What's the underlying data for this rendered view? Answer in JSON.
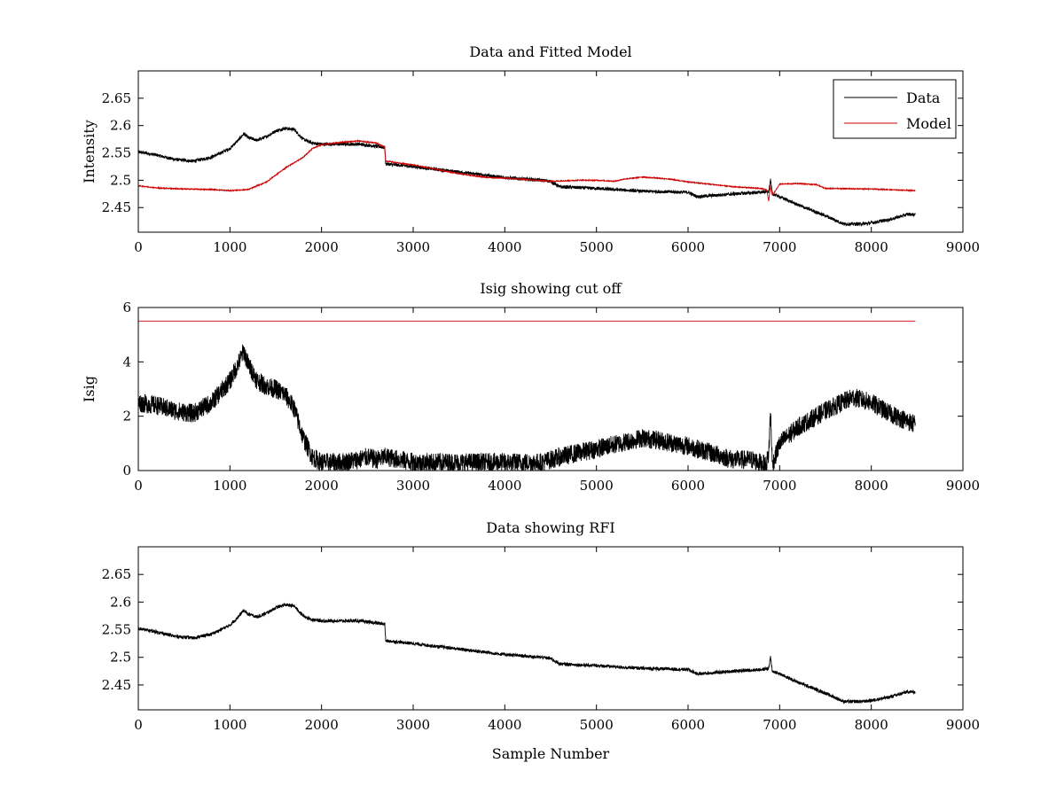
{
  "chart_data": [
    {
      "type": "line",
      "title": "Data and Fitted Model",
      "xlabel": "",
      "ylabel": "Intensity",
      "xlim": [
        0,
        9000
      ],
      "ylim": [
        2.405,
        2.7
      ],
      "xticks": [
        0,
        1000,
        2000,
        3000,
        4000,
        5000,
        6000,
        7000,
        8000,
        9000
      ],
      "yticks": [
        2.45,
        2.5,
        2.55,
        2.6,
        2.65
      ],
      "xtick_labels": [
        "0",
        "1000",
        "2000",
        "3000",
        "4000",
        "5000",
        "6000",
        "7000",
        "8000",
        "9000"
      ],
      "ytick_labels": [
        "2.45",
        "2.5",
        "2.55",
        "2.6",
        "2.65"
      ],
      "grid": false,
      "legend": "top-right",
      "series": [
        {
          "name": "Data",
          "color": "#000000",
          "noise": 0.003,
          "x": [
            0,
            200,
            400,
            600,
            800,
            1000,
            1100,
            1150,
            1200,
            1300,
            1400,
            1500,
            1600,
            1700,
            1800,
            1900,
            2000,
            2200,
            2400,
            2600,
            2690,
            2700,
            3000,
            3500,
            4000,
            4400,
            4500,
            4600,
            5000,
            5500,
            6000,
            6100,
            6500,
            6800,
            6880,
            6900,
            6920,
            7000,
            7200,
            7500,
            7700,
            7900,
            8000,
            8200,
            8400,
            8480
          ],
          "y": [
            2.552,
            2.546,
            2.538,
            2.535,
            2.542,
            2.558,
            2.575,
            2.585,
            2.578,
            2.573,
            2.58,
            2.59,
            2.595,
            2.593,
            2.575,
            2.568,
            2.566,
            2.566,
            2.566,
            2.562,
            2.56,
            2.53,
            2.525,
            2.515,
            2.505,
            2.5,
            2.498,
            2.488,
            2.485,
            2.48,
            2.478,
            2.47,
            2.475,
            2.478,
            2.48,
            2.5,
            2.475,
            2.47,
            2.455,
            2.435,
            2.42,
            2.42,
            2.422,
            2.428,
            2.438,
            2.437
          ]
        },
        {
          "name": "Model",
          "color": "#cc0000",
          "noise": 0.0008,
          "x": [
            0,
            200,
            500,
            800,
            1000,
            1200,
            1400,
            1600,
            1800,
            1900,
            2000,
            2200,
            2400,
            2600,
            2690,
            2700,
            3000,
            3500,
            3800,
            4000,
            4500,
            4800,
            5000,
            5200,
            5300,
            5500,
            5800,
            6000,
            6500,
            6800,
            6860,
            6880,
            6900,
            6920,
            7000,
            7200,
            7400,
            7500,
            8000,
            8480
          ],
          "y": [
            2.49,
            2.486,
            2.484,
            2.483,
            2.481,
            2.483,
            2.497,
            2.522,
            2.542,
            2.558,
            2.565,
            2.569,
            2.572,
            2.568,
            2.56,
            2.535,
            2.528,
            2.512,
            2.505,
            2.504,
            2.498,
            2.5,
            2.5,
            2.498,
            2.502,
            2.506,
            2.502,
            2.497,
            2.488,
            2.485,
            2.482,
            2.462,
            2.49,
            2.472,
            2.493,
            2.494,
            2.492,
            2.485,
            2.484,
            2.481
          ]
        }
      ]
    },
    {
      "type": "line",
      "title": "Isig showing cut off",
      "xlabel": "",
      "ylabel": "Isig",
      "xlim": [
        0,
        9000
      ],
      "ylim": [
        0,
        6
      ],
      "xticks": [
        0,
        1000,
        2000,
        3000,
        4000,
        5000,
        6000,
        7000,
        8000,
        9000
      ],
      "yticks": [
        0,
        2,
        4,
        6
      ],
      "xtick_labels": [
        "0",
        "1000",
        "2000",
        "3000",
        "4000",
        "5000",
        "6000",
        "7000",
        "8000",
        "9000"
      ],
      "ytick_labels": [
        "0",
        "2",
        "4",
        "6"
      ],
      "grid": false,
      "legend": "none",
      "series": [
        {
          "name": "",
          "color": "#000000",
          "noise": 0.35,
          "x": [
            0,
            200,
            400,
            600,
            800,
            1000,
            1100,
            1150,
            1200,
            1300,
            1400,
            1500,
            1600,
            1700,
            1800,
            1900,
            2000,
            2200,
            2400,
            2500,
            2600,
            2700,
            3000,
            3500,
            4000,
            4400,
            4500,
            4600,
            5000,
            5500,
            5700,
            6000,
            6300,
            6500,
            6700,
            6850,
            6880,
            6900,
            6920,
            7000,
            7200,
            7500,
            7800,
            8000,
            8200,
            8480
          ],
          "y": [
            2.5,
            2.4,
            2.2,
            2.1,
            2.5,
            3.3,
            4.0,
            4.4,
            3.9,
            3.3,
            3.1,
            3.0,
            2.8,
            2.3,
            1.2,
            0.5,
            0.3,
            0.3,
            0.4,
            0.5,
            0.4,
            0.5,
            0.3,
            0.3,
            0.3,
            0.3,
            0.4,
            0.5,
            0.8,
            1.2,
            1.1,
            0.9,
            0.6,
            0.4,
            0.4,
            0.2,
            0.6,
            2.2,
            0.2,
            1.0,
            1.6,
            2.2,
            2.7,
            2.5,
            2.1,
            1.7
          ]
        },
        {
          "name": "",
          "color": "#cc0000",
          "noise": 0,
          "x": [
            0,
            8480
          ],
          "y": [
            5.5,
            5.5
          ]
        }
      ]
    },
    {
      "type": "line",
      "title": "Data showing RFI",
      "xlabel": "Sample Number",
      "ylabel": "",
      "xlim": [
        0,
        9000
      ],
      "ylim": [
        2.405,
        2.7
      ],
      "xticks": [
        0,
        1000,
        2000,
        3000,
        4000,
        5000,
        6000,
        7000,
        8000,
        9000
      ],
      "yticks": [
        2.45,
        2.5,
        2.55,
        2.6,
        2.65
      ],
      "xtick_labels": [
        "0",
        "1000",
        "2000",
        "3000",
        "4000",
        "5000",
        "6000",
        "7000",
        "8000",
        "9000"
      ],
      "ytick_labels": [
        "2.45",
        "2.5",
        "2.55",
        "2.6",
        "2.65"
      ],
      "grid": false,
      "legend": "none",
      "series": [
        {
          "name": "",
          "color": "#000000",
          "noise": 0.003,
          "x": [
            0,
            200,
            400,
            600,
            800,
            1000,
            1100,
            1150,
            1200,
            1300,
            1400,
            1500,
            1600,
            1700,
            1800,
            1900,
            2000,
            2200,
            2400,
            2600,
            2690,
            2700,
            3000,
            3500,
            4000,
            4400,
            4500,
            4600,
            5000,
            5500,
            6000,
            6100,
            6500,
            6800,
            6880,
            6900,
            6920,
            7000,
            7200,
            7500,
            7700,
            7900,
            8000,
            8200,
            8400,
            8480
          ],
          "y": [
            2.552,
            2.546,
            2.538,
            2.535,
            2.542,
            2.558,
            2.575,
            2.585,
            2.578,
            2.573,
            2.58,
            2.59,
            2.595,
            2.593,
            2.575,
            2.568,
            2.566,
            2.566,
            2.566,
            2.562,
            2.56,
            2.53,
            2.525,
            2.515,
            2.505,
            2.5,
            2.498,
            2.488,
            2.485,
            2.48,
            2.478,
            2.47,
            2.475,
            2.478,
            2.48,
            2.5,
            2.475,
            2.47,
            2.455,
            2.435,
            2.42,
            2.42,
            2.422,
            2.428,
            2.438,
            2.437
          ]
        }
      ]
    }
  ]
}
